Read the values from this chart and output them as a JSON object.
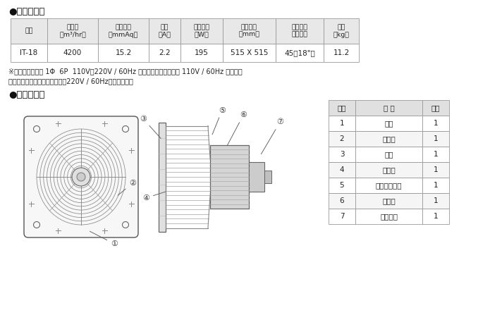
{
  "bg_color": "#ffffff",
  "title1": "●功能規格表",
  "title2": "●各部位名稱",
  "table_headers": [
    "機型",
    "排風量\n（m³/hr）",
    "機外靜壓\n（mmAq）",
    "電流\n（A）",
    "消耗功率\n（W）",
    "安裝尺寸\n（mm）",
    "扇葉尺寸\n（公分）",
    "重量\n（kg）"
  ],
  "table_data": [
    [
      "IT-18",
      "4200",
      "15.2",
      "2.2",
      "195",
      "515 X 515",
      "45（18\"）",
      "11.2"
    ]
  ],
  "note_line1": "※電容運轉式馬達 1Φ  6P  110V、220V / 60Hz 可正逆轉，（出貨品為 110V / 60Hz 排氣），",
  "note_line2": "　整批性訂單則可依客戶需求改220V / 60Hz或吸氣功能。",
  "parts_headers": [
    "號碼",
    "名 稱",
    "数量"
  ],
  "parts_data": [
    [
      "1",
      "機殼",
      "1"
    ],
    [
      "2",
      "前網罩",
      "1"
    ],
    [
      "3",
      "扇葉",
      "1"
    ],
    [
      "4",
      "後網罩",
      "1"
    ],
    [
      "5",
      "後網罩固定片",
      "1"
    ],
    [
      "6",
      "馬達組",
      "1"
    ],
    [
      "7",
      "電容器蓋",
      "1"
    ]
  ],
  "header_bg": "#e8e8e8",
  "row_bg_odd": "#ffffff",
  "row_bg_even": "#f5f5f5",
  "border_color": "#999999",
  "text_color": "#222222",
  "parts_header_bg": "#e0e0e0"
}
